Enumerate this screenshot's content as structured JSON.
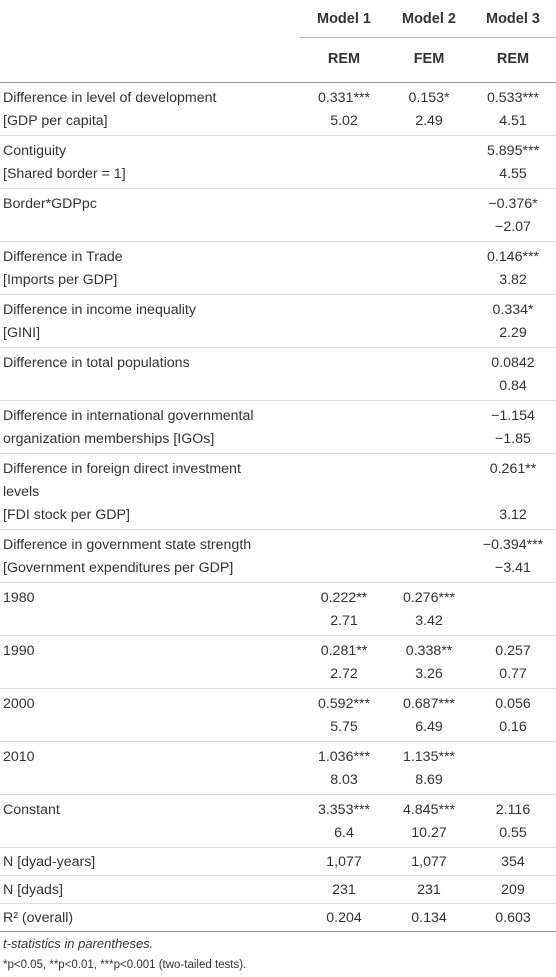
{
  "table": {
    "models": [
      "Model 1",
      "Model 2",
      "Model 3"
    ],
    "estimators": [
      "REM",
      "FEM",
      "REM"
    ],
    "rows": [
      [
        [
          "Difference in level of development",
          "0.331***",
          "0.153*",
          "0.533***"
        ],
        [
          "[GDP per capita]",
          "5.02",
          "2.49",
          "4.51"
        ]
      ],
      [
        [
          "Contiguity",
          null,
          null,
          "5.895***"
        ],
        [
          "[Shared border = 1]",
          null,
          null,
          "4.55"
        ]
      ],
      [
        [
          "Border*GDPpc",
          null,
          null,
          "−0.376*"
        ],
        [
          null,
          null,
          null,
          "−2.07"
        ]
      ],
      [
        [
          "Difference in Trade",
          null,
          null,
          "0.146***"
        ],
        [
          "[Imports per GDP]",
          null,
          null,
          "3.82"
        ]
      ],
      [
        [
          "Difference in income inequality",
          null,
          null,
          "0.334*"
        ],
        [
          "[GINI]",
          null,
          null,
          "2.29"
        ]
      ],
      [
        [
          "Difference in total populations",
          null,
          null,
          "0.0842"
        ],
        [
          null,
          null,
          null,
          "0.84"
        ]
      ],
      [
        [
          "Difference in international governmental",
          null,
          null,
          "−1.154"
        ],
        [
          "organization memberships [IGOs]",
          null,
          null,
          "−1.85"
        ]
      ],
      [
        [
          "Difference in foreign direct investment",
          null,
          null,
          "0.261**"
        ],
        [
          "levels",
          null,
          null,
          null
        ],
        [
          "[FDI stock per GDP]",
          null,
          null,
          "3.12"
        ]
      ],
      [
        [
          "Difference in government state strength",
          null,
          null,
          "−0.394***"
        ],
        [
          "[Government expenditures per GDP]",
          null,
          null,
          "−3.41"
        ]
      ],
      [
        [
          "1980",
          "0.222**",
          "0.276***",
          null
        ],
        [
          null,
          "2.71",
          "3.42",
          null
        ]
      ],
      [
        [
          "1990",
          "0.281**",
          "0.338**",
          "0.257"
        ],
        [
          null,
          "2.72",
          "3.26",
          "0.77"
        ]
      ],
      [
        [
          "2000",
          "0.592***",
          "0.687***",
          "0.056"
        ],
        [
          null,
          "5.75",
          "6.49",
          "0.16"
        ]
      ],
      [
        [
          "2010",
          "1.036***",
          "1.135***",
          null
        ],
        [
          null,
          "8.03",
          "8.69",
          null
        ]
      ],
      [
        [
          "Constant",
          "3.353***",
          "4.845***",
          "2.116"
        ],
        [
          null,
          "6.4",
          "10.27",
          "0.55"
        ]
      ],
      [
        [
          "N [dyad-years]",
          "1,077",
          "1,077",
          "354"
        ]
      ],
      [
        [
          "N [dyads]",
          "231",
          "231",
          "209"
        ]
      ],
      [
        [
          "R² (overall)",
          "0.204",
          "0.134",
          "0.603"
        ]
      ]
    ]
  },
  "notes": [
    "t-statistics in parentheses.",
    "*p<0.05, **p<0.01, ***p<0.001 (two-tailed tests)."
  ]
}
